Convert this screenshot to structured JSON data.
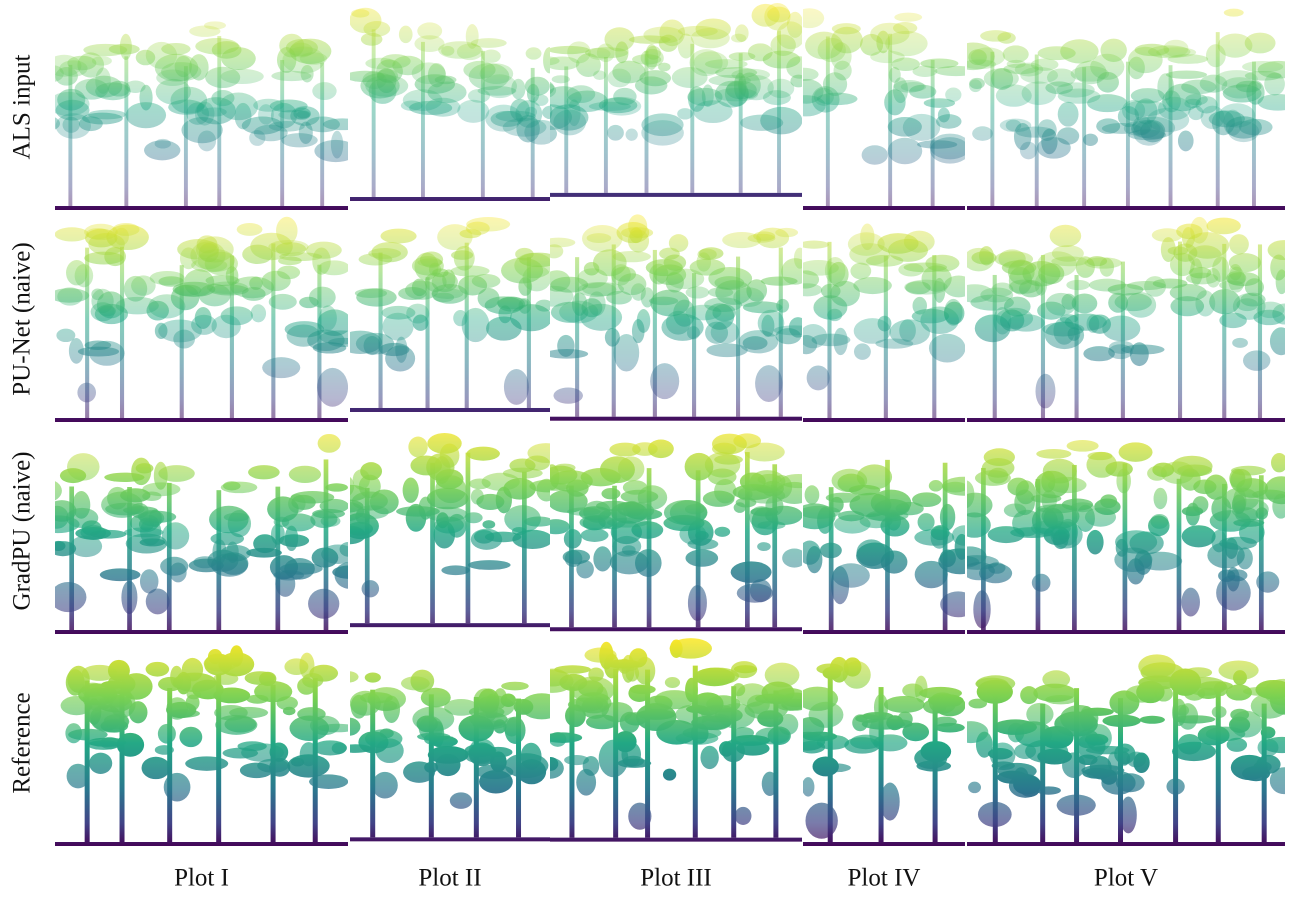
{
  "row_labels": [
    "ALS input",
    "PU-Net (naive)",
    "GradPU (naive)",
    "Reference"
  ],
  "column_labels": [
    "Plot I",
    "Plot II",
    "Plot III",
    "Plot IV",
    "Plot V"
  ]
}
